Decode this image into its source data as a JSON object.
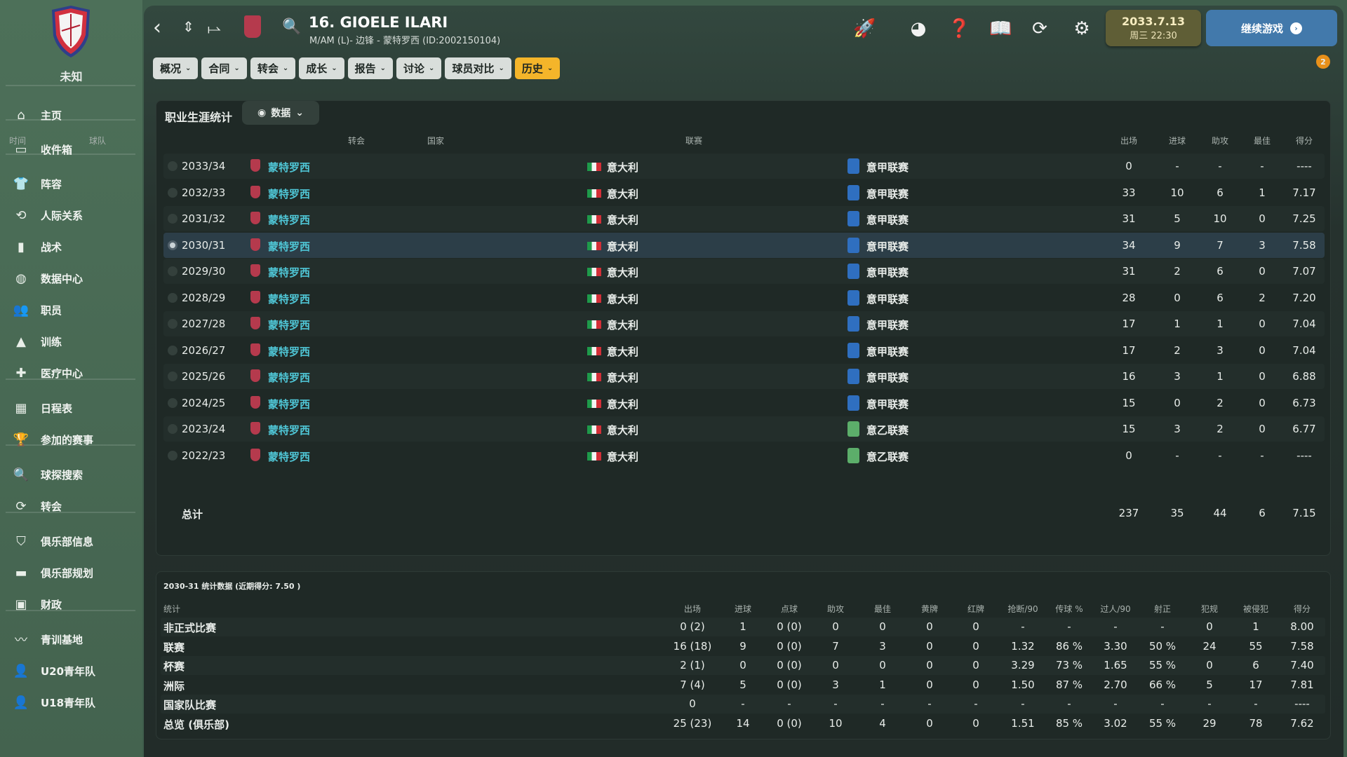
{
  "sidebar": {
    "club_name": "未知",
    "items": [
      {
        "label": "主页",
        "icon": "home-icon",
        "glyph": "⌂"
      },
      {
        "label": "收件箱",
        "icon": "inbox-icon",
        "glyph": "▭"
      },
      {
        "label": "阵容",
        "icon": "shirt-icon",
        "glyph": "👕"
      },
      {
        "label": "人际关系",
        "icon": "relations-icon",
        "glyph": "⟲"
      },
      {
        "label": "战术",
        "icon": "tactics-icon",
        "glyph": "▮"
      },
      {
        "label": "数据中心",
        "icon": "data-hub-icon",
        "glyph": "◍"
      },
      {
        "label": "职员",
        "icon": "staff-icon",
        "glyph": "👥"
      },
      {
        "label": "训练",
        "icon": "training-icon",
        "glyph": "▲"
      },
      {
        "label": "医疗中心",
        "icon": "medical-icon",
        "glyph": "✚"
      },
      {
        "label": "日程表",
        "icon": "calendar-icon",
        "glyph": "▦"
      },
      {
        "label": "参加的赛事",
        "icon": "trophy-icon",
        "glyph": "🏆"
      },
      {
        "label": "球探搜索",
        "icon": "search-icon",
        "glyph": "🔍"
      },
      {
        "label": "转会",
        "icon": "transfer-icon",
        "glyph": "⟳"
      },
      {
        "label": "俱乐部信息",
        "icon": "shield-icon",
        "glyph": "⛉"
      },
      {
        "label": "俱乐部规划",
        "icon": "briefcase-icon",
        "glyph": "▬"
      },
      {
        "label": "财政",
        "icon": "finance-icon",
        "glyph": "▣"
      },
      {
        "label": "青训基地",
        "icon": "youth-icon",
        "glyph": "〰"
      },
      {
        "label": "U20青年队",
        "icon": "u20-icon",
        "glyph": "👤"
      },
      {
        "label": "U18青年队",
        "icon": "u18-icon",
        "glyph": "👤"
      }
    ]
  },
  "header": {
    "title": "16. GIOELE ILARI",
    "subtitle": "M/AM (L)- 边锋 - 蒙特罗西 (ID:2002150104)",
    "tabs": [
      {
        "label": "概况"
      },
      {
        "label": "合同"
      },
      {
        "label": "转会"
      },
      {
        "label": "成长"
      },
      {
        "label": "报告"
      },
      {
        "label": "讨论"
      },
      {
        "label": "球员对比"
      },
      {
        "label": "历史",
        "active": true
      }
    ],
    "date": "2033.7.13",
    "time": "周三 22:30",
    "continue_label": "继续游戏",
    "notification_count": "2"
  },
  "career": {
    "title": "职业生涯统计",
    "view_label": "数据",
    "columns": [
      "时间",
      "球队",
      "转会",
      "国家",
      "联赛",
      "出场",
      "进球",
      "助攻",
      "最佳",
      "得分"
    ],
    "rows": [
      [
        "2033/34",
        "蒙特罗西",
        "",
        "意大利",
        "意甲联赛",
        "0",
        "-",
        "-",
        "-",
        "----"
      ],
      [
        "2032/33",
        "蒙特罗西",
        "",
        "意大利",
        "意甲联赛",
        "33",
        "10",
        "6",
        "1",
        "7.17"
      ],
      [
        "2031/32",
        "蒙特罗西",
        "",
        "意大利",
        "意甲联赛",
        "31",
        "5",
        "10",
        "0",
        "7.25"
      ],
      [
        "2030/31",
        "蒙特罗西",
        "",
        "意大利",
        "意甲联赛",
        "34",
        "9",
        "7",
        "3",
        "7.58"
      ],
      [
        "2029/30",
        "蒙特罗西",
        "",
        "意大利",
        "意甲联赛",
        "31",
        "2",
        "6",
        "0",
        "7.07"
      ],
      [
        "2028/29",
        "蒙特罗西",
        "",
        "意大利",
        "意甲联赛",
        "28",
        "0",
        "6",
        "2",
        "7.20"
      ],
      [
        "2027/28",
        "蒙特罗西",
        "",
        "意大利",
        "意甲联赛",
        "17",
        "1",
        "1",
        "0",
        "7.04"
      ],
      [
        "2026/27",
        "蒙特罗西",
        "",
        "意大利",
        "意甲联赛",
        "17",
        "2",
        "3",
        "0",
        "7.04"
      ],
      [
        "2025/26",
        "蒙特罗西",
        "",
        "意大利",
        "意甲联赛",
        "16",
        "3",
        "1",
        "0",
        "6.88"
      ],
      [
        "2024/25",
        "蒙特罗西",
        "",
        "意大利",
        "意甲联赛",
        "15",
        "0",
        "2",
        "0",
        "6.73"
      ],
      [
        "2023/24",
        "蒙特罗西",
        "",
        "意大利",
        "意乙联赛",
        "15",
        "3",
        "2",
        "0",
        "6.77"
      ],
      [
        "2022/23",
        "蒙特罗西",
        "",
        "意大利",
        "意乙联赛",
        "0",
        "-",
        "-",
        "-",
        "----"
      ]
    ],
    "selected_index": 3,
    "total": {
      "label": "总计",
      "values": [
        "237",
        "35",
        "44",
        "6",
        "7.15"
      ]
    }
  },
  "season": {
    "title": "2030-31 统计数据 (近期得分: 7.50 )",
    "columns": [
      "统计",
      "出场",
      "进球",
      "点球",
      "助攻",
      "最佳",
      "黄牌",
      "红牌",
      "抢断/90",
      "传球 %",
      "过人/90",
      "射正",
      "犯规",
      "被侵犯",
      "得分"
    ],
    "rows": [
      {
        "label": "非正式比赛",
        "values": [
          "0 (2)",
          "1",
          "0 (0)",
          "0",
          "0",
          "0",
          "0",
          "-",
          "-",
          "-",
          "-",
          "0",
          "1",
          "8.00"
        ]
      },
      {
        "label": "联赛",
        "values": [
          "16 (18)",
          "9",
          "0 (0)",
          "7",
          "3",
          "0",
          "0",
          "1.32",
          "86 %",
          "3.30",
          "50 %",
          "24",
          "55",
          "7.58"
        ]
      },
      {
        "label": "杯赛",
        "values": [
          "2 (1)",
          "0",
          "0 (0)",
          "0",
          "0",
          "0",
          "0",
          "3.29",
          "73 %",
          "1.65",
          "55 %",
          "0",
          "6",
          "7.40"
        ]
      },
      {
        "label": "洲际",
        "values": [
          "7 (4)",
          "5",
          "0 (0)",
          "3",
          "1",
          "0",
          "0",
          "1.50",
          "87 %",
          "2.70",
          "66 %",
          "5",
          "17",
          "7.81"
        ]
      },
      {
        "label": "国家队比赛",
        "values": [
          "0",
          "-",
          "-",
          "-",
          "-",
          "-",
          "-",
          "-",
          "-",
          "-",
          "-",
          "-",
          "-",
          "----"
        ]
      },
      {
        "label": "总览 (俱乐部)",
        "values": [
          "25 (23)",
          "14",
          "0 (0)",
          "10",
          "4",
          "0",
          "0",
          "1.51",
          "85 %",
          "3.02",
          "55 %",
          "29",
          "78",
          "7.62"
        ]
      }
    ]
  },
  "colors": {
    "accent_tab": "#f4b52a",
    "team_link": "#4fc6d6",
    "continue": "#4279ab",
    "date_box": "#5f5e36"
  }
}
